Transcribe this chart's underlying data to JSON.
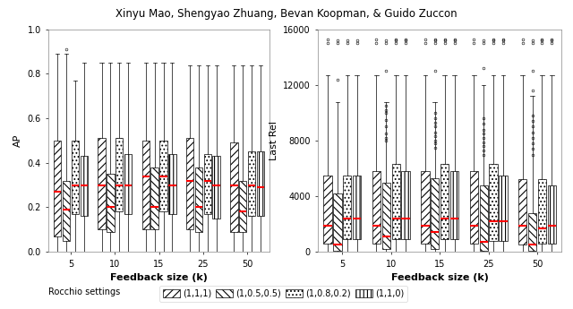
{
  "title": "Xinyu Mao, Shengyao Zhuang, Bevan Koopman, & Guido Zuccon",
  "feedback_sizes": [
    "5",
    "10",
    "15",
    "25",
    "50"
  ],
  "settings": [
    "(1,1,1)",
    "(1,0.5,0.5)",
    "(1,0.8,0.2)",
    "(1,1,0)"
  ],
  "hatches": [
    "////",
    "\\\\\\\\",
    "....",
    "||||"
  ],
  "offsets": [
    -0.3,
    -0.1,
    0.1,
    0.3
  ],
  "box_width": 0.17,
  "ap_data": {
    "5": {
      "(1,1,1)": {
        "q1": 0.07,
        "median": 0.27,
        "q3": 0.5,
        "whislo": 0.0,
        "whishi": 0.89,
        "fliers": []
      },
      "(1,0.5,0.5)": {
        "q1": 0.05,
        "median": 0.19,
        "q3": 0.32,
        "whislo": 0.0,
        "whishi": 0.89,
        "fliers": [
          0.91
        ]
      },
      "(1,0.8,0.2)": {
        "q1": 0.17,
        "median": 0.3,
        "q3": 0.5,
        "whislo": 0.0,
        "whishi": 0.77,
        "fliers": []
      },
      "(1,1,0)": {
        "q1": 0.16,
        "median": 0.3,
        "q3": 0.43,
        "whislo": 0.0,
        "whishi": 0.85,
        "fliers": []
      }
    },
    "10": {
      "(1,1,1)": {
        "q1": 0.1,
        "median": 0.3,
        "q3": 0.51,
        "whislo": 0.0,
        "whishi": 0.85,
        "fliers": []
      },
      "(1,0.5,0.5)": {
        "q1": 0.09,
        "median": 0.2,
        "q3": 0.35,
        "whislo": 0.0,
        "whishi": 0.85,
        "fliers": []
      },
      "(1,0.8,0.2)": {
        "q1": 0.18,
        "median": 0.3,
        "q3": 0.51,
        "whislo": 0.0,
        "whishi": 0.85,
        "fliers": []
      },
      "(1,1,0)": {
        "q1": 0.17,
        "median": 0.3,
        "q3": 0.44,
        "whislo": 0.0,
        "whishi": 0.85,
        "fliers": []
      }
    },
    "15": {
      "(1,1,1)": {
        "q1": 0.1,
        "median": 0.34,
        "q3": 0.5,
        "whislo": 0.0,
        "whishi": 0.85,
        "fliers": []
      },
      "(1,0.5,0.5)": {
        "q1": 0.1,
        "median": 0.2,
        "q3": 0.38,
        "whislo": 0.0,
        "whishi": 0.85,
        "fliers": []
      },
      "(1,0.8,0.2)": {
        "q1": 0.18,
        "median": 0.34,
        "q3": 0.5,
        "whislo": 0.0,
        "whishi": 0.85,
        "fliers": []
      },
      "(1,1,0)": {
        "q1": 0.17,
        "median": 0.3,
        "q3": 0.44,
        "whislo": 0.0,
        "whishi": 0.85,
        "fliers": []
      }
    },
    "25": {
      "(1,1,1)": {
        "q1": 0.1,
        "median": 0.32,
        "q3": 0.51,
        "whislo": 0.0,
        "whishi": 0.84,
        "fliers": []
      },
      "(1,0.5,0.5)": {
        "q1": 0.09,
        "median": 0.2,
        "q3": 0.38,
        "whislo": 0.0,
        "whishi": 0.84,
        "fliers": []
      },
      "(1,0.8,0.2)": {
        "q1": 0.17,
        "median": 0.32,
        "q3": 0.44,
        "whislo": 0.0,
        "whishi": 0.84,
        "fliers": []
      },
      "(1,1,0)": {
        "q1": 0.15,
        "median": 0.3,
        "q3": 0.43,
        "whislo": 0.0,
        "whishi": 0.84,
        "fliers": []
      }
    },
    "50": {
      "(1,1,1)": {
        "q1": 0.09,
        "median": 0.3,
        "q3": 0.49,
        "whislo": 0.0,
        "whishi": 0.84,
        "fliers": []
      },
      "(1,0.5,0.5)": {
        "q1": 0.09,
        "median": 0.18,
        "q3": 0.32,
        "whislo": 0.0,
        "whishi": 0.84,
        "fliers": []
      },
      "(1,0.8,0.2)": {
        "q1": 0.16,
        "median": 0.3,
        "q3": 0.45,
        "whislo": 0.0,
        "whishi": 0.84,
        "fliers": []
      },
      "(1,1,0)": {
        "q1": 0.16,
        "median": 0.29,
        "q3": 0.45,
        "whislo": 0.0,
        "whishi": 0.84,
        "fliers": []
      }
    }
  },
  "lr_data": {
    "5": {
      "(1,1,1)": {
        "q1": 600,
        "median": 1900,
        "q3": 5500,
        "whislo": 0,
        "whishi": 12700,
        "fliers": [
          15000,
          15300
        ]
      },
      "(1,0.5,0.5)": {
        "q1": 100,
        "median": 500,
        "q3": 4200,
        "whislo": 0,
        "whishi": 10800,
        "fliers": [
          12400,
          15000,
          15200
        ]
      },
      "(1,0.8,0.2)": {
        "q1": 900,
        "median": 2400,
        "q3": 5500,
        "whislo": 0,
        "whishi": 12700,
        "fliers": [
          15000,
          15200
        ]
      },
      "(1,1,0)": {
        "q1": 900,
        "median": 2400,
        "q3": 5500,
        "whislo": 0,
        "whishi": 12700,
        "fliers": [
          15000,
          15200
        ]
      }
    },
    "10": {
      "(1,1,1)": {
        "q1": 600,
        "median": 1900,
        "q3": 5800,
        "whislo": 0,
        "whishi": 12700,
        "fliers": [
          15000,
          15300
        ]
      },
      "(1,0.5,0.5)": {
        "q1": 200,
        "median": 1100,
        "q3": 5000,
        "whislo": 0,
        "whishi": 10800,
        "fliers": [
          8000,
          8200,
          8500,
          9000,
          9500,
          10000,
          10200,
          10500,
          13000,
          15000,
          15200
        ]
      },
      "(1,0.8,0.2)": {
        "q1": 900,
        "median": 2400,
        "q3": 6300,
        "whislo": 0,
        "whishi": 12700,
        "fliers": [
          15000,
          15200,
          15300
        ]
      },
      "(1,1,0)": {
        "q1": 900,
        "median": 2400,
        "q3": 5800,
        "whislo": 0,
        "whishi": 12700,
        "fliers": [
          15000,
          15200,
          15300
        ]
      }
    },
    "15": {
      "(1,1,1)": {
        "q1": 600,
        "median": 1900,
        "q3": 5800,
        "whislo": 0,
        "whishi": 12700,
        "fliers": [
          15000,
          15300
        ]
      },
      "(1,0.5,0.5)": {
        "q1": 200,
        "median": 1400,
        "q3": 5300,
        "whislo": 0,
        "whishi": 10800,
        "fliers": [
          7500,
          7800,
          8000,
          8300,
          8600,
          9000,
          9300,
          9600,
          10000,
          13000,
          15000,
          15200,
          15300
        ]
      },
      "(1,0.8,0.2)": {
        "q1": 900,
        "median": 2400,
        "q3": 6300,
        "whislo": 0,
        "whishi": 12700,
        "fliers": [
          15000,
          15200,
          15300
        ]
      },
      "(1,1,0)": {
        "q1": 900,
        "median": 2400,
        "q3": 5800,
        "whislo": 0,
        "whishi": 12700,
        "fliers": [
          15000,
          15200,
          15300
        ]
      }
    },
    "25": {
      "(1,1,1)": {
        "q1": 600,
        "median": 1900,
        "q3": 5800,
        "whislo": 0,
        "whishi": 12700,
        "fliers": [
          15000,
          15300
        ]
      },
      "(1,0.5,0.5)": {
        "q1": 100,
        "median": 700,
        "q3": 4800,
        "whislo": 0,
        "whishi": 12000,
        "fliers": [
          7000,
          7300,
          7600,
          7900,
          8200,
          8500,
          8800,
          9200,
          9600,
          13200,
          15000,
          15200
        ]
      },
      "(1,0.8,0.2)": {
        "q1": 800,
        "median": 2200,
        "q3": 6300,
        "whislo": 0,
        "whishi": 12700,
        "fliers": [
          15000,
          15200,
          15300
        ]
      },
      "(1,1,0)": {
        "q1": 800,
        "median": 2200,
        "q3": 5500,
        "whislo": 0,
        "whishi": 12700,
        "fliers": [
          15000,
          15200,
          15300
        ]
      }
    },
    "50": {
      "(1,1,1)": {
        "q1": 500,
        "median": 1900,
        "q3": 5200,
        "whislo": 0,
        "whishi": 12700,
        "fliers": [
          15000,
          15300
        ]
      },
      "(1,0.5,0.5)": {
        "q1": 50,
        "median": 500,
        "q3": 2800,
        "whislo": 0,
        "whishi": 11200,
        "fliers": [
          7000,
          7400,
          7800,
          8200,
          8600,
          9000,
          9400,
          9800,
          11600,
          13000,
          15000,
          15200
        ]
      },
      "(1,0.8,0.2)": {
        "q1": 600,
        "median": 1700,
        "q3": 5200,
        "whislo": 0,
        "whishi": 12700,
        "fliers": [
          15000,
          15200,
          15300
        ]
      },
      "(1,1,0)": {
        "q1": 600,
        "median": 1900,
        "q3": 4800,
        "whislo": 0,
        "whishi": 12700,
        "fliers": [
          15000,
          15200,
          15300
        ]
      }
    }
  },
  "ap_ylim": [
    0.0,
    1.0
  ],
  "ap_yticks": [
    0.0,
    0.2,
    0.4,
    0.6,
    0.8,
    1.0
  ],
  "lr_ylim": [
    0,
    16000
  ],
  "lr_yticks": [
    0,
    4000,
    8000,
    12000,
    16000
  ],
  "median_color": "#ff0000",
  "xlabel": "Feedback size (k)",
  "ap_ylabel": "AP",
  "lr_ylabel": "Last Rel",
  "legend_title": "Rocchio settings",
  "xtick_labels": [
    "5",
    "10",
    "15",
    "25",
    "50"
  ]
}
